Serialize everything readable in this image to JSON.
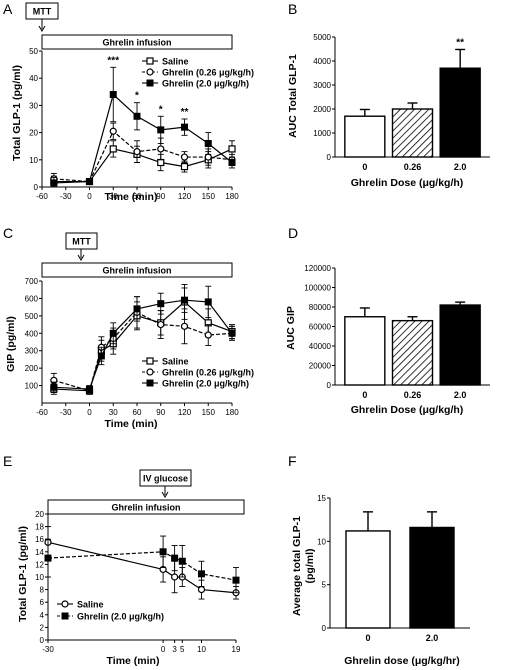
{
  "chart_data": [
    {
      "panel": "A",
      "type": "line",
      "ylabel": "Total GLP-1 (pg/ml)",
      "xlabel": "Time (min)",
      "xlim": [
        -60,
        180
      ],
      "ylim": [
        0,
        50
      ],
      "xticks": [
        "-60",
        "-30",
        "0",
        "30",
        "60",
        "90",
        "120",
        "150",
        "180"
      ],
      "yticks": [
        "0",
        "10",
        "20",
        "30",
        "40",
        "50"
      ],
      "annotation_box": "MTT",
      "infusion_label": "Ghrelin infusion",
      "legend_position": "upper-right",
      "x": [
        -45,
        0,
        30,
        60,
        90,
        120,
        150,
        180
      ],
      "series": [
        {
          "name": "Saline",
          "marker": "square-open",
          "line": "solid",
          "color": "#000000",
          "values": [
            2,
            2,
            14,
            12,
            9,
            7.5,
            10,
            14
          ],
          "err": [
            2,
            1,
            3,
            3,
            3,
            2,
            3,
            3
          ]
        },
        {
          "name": "Ghrelin (0.26 μg/kg/h)",
          "marker": "circle-open",
          "line": "dashed",
          "color": "#000000",
          "values": [
            3,
            2,
            20.5,
            13,
            14,
            11,
            11,
            10
          ],
          "err": [
            2,
            1,
            3,
            4,
            4,
            2,
            3,
            2
          ]
        },
        {
          "name": "Ghrelin (2.0 μg/kg/h)",
          "marker": "square-filled",
          "line": "solid",
          "color": "#000000",
          "values": [
            1.5,
            2,
            34,
            26,
            21,
            22,
            16,
            9
          ],
          "err": [
            2,
            1,
            10,
            5,
            5,
            3,
            4,
            2
          ]
        }
      ],
      "significance": [
        {
          "x": 30,
          "label": "***"
        },
        {
          "x": 60,
          "label": "*"
        },
        {
          "x": 90,
          "label": "*"
        },
        {
          "x": 120,
          "label": "**"
        }
      ]
    },
    {
      "panel": "B",
      "type": "bar",
      "ylabel": "AUC Total GLP-1",
      "xlabel": "Ghrelin Dose (μg/kg/h)",
      "ylim": [
        0,
        5000
      ],
      "yticks": [
        "0",
        "1000",
        "2000",
        "3000",
        "4000",
        "5000"
      ],
      "categories": [
        "0",
        "0.26",
        "2.0"
      ],
      "values": [
        1700,
        2000,
        3700
      ],
      "err": [
        280,
        250,
        780
      ],
      "fills": [
        "white",
        "hatched",
        "black"
      ],
      "significance": [
        {
          "index": 2,
          "label": "**"
        }
      ]
    },
    {
      "panel": "C",
      "type": "line",
      "ylabel": "GIP (pg/ml)",
      "xlabel": "Time (min)",
      "xlim": [
        -60,
        180
      ],
      "ylim": [
        0,
        700
      ],
      "xticks": [
        "-60",
        "-30",
        "0",
        "30",
        "60",
        "90",
        "120",
        "150",
        "180"
      ],
      "yticks": [
        "100",
        "200",
        "300",
        "400",
        "500",
        "600",
        "700"
      ],
      "annotation_box": "MTT",
      "infusion_label": "Ghrelin infusion",
      "legend_position": "lower-right",
      "x": [
        -45,
        0,
        15,
        30,
        60,
        90,
        120,
        150,
        180
      ],
      "series": [
        {
          "name": "Saline",
          "marker": "square-open",
          "line": "solid",
          "color": "#000000",
          "values": [
            80,
            70,
            300,
            340,
            500,
            460,
            580,
            460,
            410
          ],
          "err": [
            30,
            20,
            60,
            60,
            80,
            70,
            100,
            80,
            40
          ]
        },
        {
          "name": "Ghrelin (0.26 μg/kg/h)",
          "marker": "circle-open",
          "line": "dashed",
          "color": "#000000",
          "values": [
            130,
            70,
            320,
            370,
            520,
            450,
            440,
            390,
            400
          ],
          "err": [
            40,
            20,
            60,
            60,
            90,
            80,
            100,
            60,
            40
          ]
        },
        {
          "name": "Ghrelin (2.0 μg/kg/h)",
          "marker": "square-filled",
          "line": "solid",
          "color": "#000000",
          "values": [
            90,
            80,
            270,
            400,
            540,
            570,
            590,
            580,
            400
          ],
          "err": [
            30,
            20,
            50,
            60,
            70,
            60,
            70,
            90,
            40
          ]
        }
      ]
    },
    {
      "panel": "D",
      "type": "bar",
      "ylabel": "AUC GIP",
      "xlabel": "Ghrelin Dose (μg/kg/h)",
      "ylim": [
        0,
        120000
      ],
      "yticks": [
        "0",
        "20000",
        "40000",
        "60000",
        "80000",
        "100000",
        "120000"
      ],
      "categories": [
        "0",
        "0.26",
        "2.0"
      ],
      "values": [
        70000,
        66000,
        82000
      ],
      "err": [
        9000,
        4000,
        3000
      ],
      "fills": [
        "white",
        "hatched",
        "black"
      ]
    },
    {
      "panel": "E",
      "type": "line",
      "ylabel": "Total GLP-1 (pg/ml)",
      "xlabel": "Time (min)",
      "xlim": [
        -30,
        19
      ],
      "ylim": [
        0,
        20
      ],
      "xticks": [
        "-30",
        "0",
        "3",
        "5",
        "10",
        "19"
      ],
      "yticks": [
        "0",
        "2",
        "4",
        "6",
        "8",
        "10",
        "12",
        "14",
        "16",
        "18",
        "20"
      ],
      "annotation_box": "IV glucose",
      "infusion_label": "Ghrelin infusion",
      "legend_position": "lower-left",
      "x": [
        -30,
        0,
        3,
        5,
        10,
        19
      ],
      "series": [
        {
          "name": "Saline",
          "marker": "circle-open",
          "line": "solid",
          "color": "#000000",
          "values": [
            15.5,
            11.2,
            10.0,
            10.0,
            8.0,
            7.5
          ],
          "err": [
            2.5,
            2.0,
            2.5,
            1.5,
            1.5,
            1.0
          ]
        },
        {
          "name": "Ghrelin (2.0 μg/kg/h)",
          "marker": "square-filled",
          "line": "dashed",
          "color": "#000000",
          "values": [
            13.0,
            14.0,
            13.0,
            12.5,
            10.5,
            9.5
          ],
          "err": [
            3.0,
            2.5,
            2.0,
            2.5,
            2.0,
            2.0
          ]
        }
      ]
    },
    {
      "panel": "F",
      "type": "bar",
      "ylabel": "Average total GLP-1 (pg/ml)",
      "xlabel": "Ghrelin dose (μg/kg/hr)",
      "ylim": [
        0,
        15
      ],
      "yticks": [
        "0",
        "5",
        "10",
        "15"
      ],
      "categories": [
        "0",
        "2.0"
      ],
      "values": [
        11.2,
        11.6
      ],
      "err": [
        2.2,
        1.8
      ],
      "fills": [
        "white",
        "black"
      ]
    }
  ],
  "labels": {
    "panelA": "A",
    "panelB": "B",
    "panelC": "C",
    "panelD": "D",
    "panelE": "E",
    "panelF": "F",
    "ylabelA": "Total GLP-1 (pg/ml)",
    "xlabelA": "Time (min)",
    "ylabelB": "AUC Total GLP-1",
    "xlabelB": "Ghrelin Dose (μg/kg/h)",
    "ylabelC": "GIP (pg/ml)",
    "xlabelC": "Time (min)",
    "ylabelD": "AUC GIP",
    "xlabelD": "Ghrelin Dose (μg/kg/h)",
    "ylabelE": "Total GLP-1 (pg/ml)",
    "xlabelE": "Time (min)",
    "ylabelF1": "Average total GLP-1",
    "ylabelF2": "(pg/ml)",
    "xlabelF": "Ghrelin dose (μg/kg/hr)",
    "mtt": "MTT",
    "ivglucose": "IV glucose",
    "infusion": "Ghrelin infusion"
  }
}
